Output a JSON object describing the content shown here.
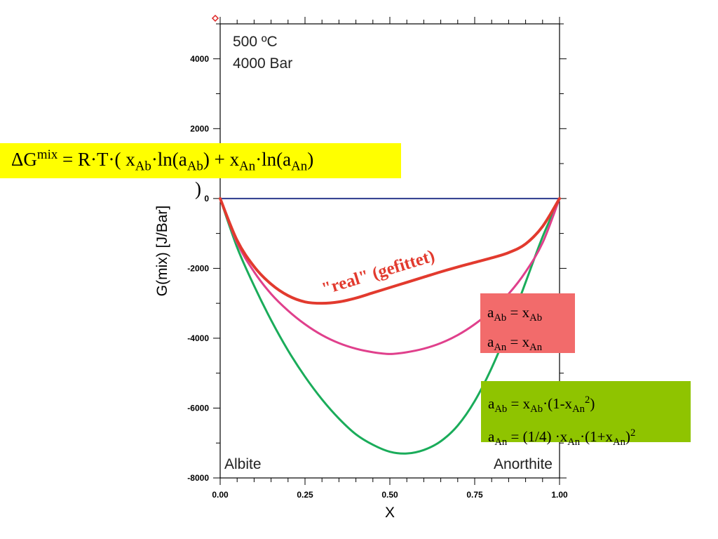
{
  "chart_data": {
    "type": "line",
    "title": "",
    "conditions": [
      "500 ºC",
      "4000 Bar"
    ],
    "xlabel": "X",
    "ylabel": "G(mix) [J/Bar]",
    "xlim": [
      0,
      1
    ],
    "ylim": [
      -8000,
      5000
    ],
    "x_ticks": [
      "0.00",
      "0.25",
      "0.50",
      "0.75",
      "1.00"
    ],
    "y_ticks": [
      "4000",
      "2000",
      "0",
      "-2000",
      "-4000",
      "-6000",
      "-8000"
    ],
    "corner_labels": {
      "left": "Albite",
      "right": "Anorthite"
    },
    "series": [
      {
        "color": "#2b3a8c",
        "x": [
          0,
          1
        ],
        "y": [
          0,
          0
        ]
      },
      {
        "label": "\"real\" (gefittet)",
        "color": "#e23a2e",
        "x": [
          0,
          0.05,
          0.1,
          0.15,
          0.2,
          0.25,
          0.3,
          0.35,
          0.4,
          0.45,
          0.5,
          0.55,
          0.6,
          0.65,
          0.7,
          0.75,
          0.8,
          0.85,
          0.9,
          0.95,
          1.0
        ],
        "y": [
          0,
          -1200,
          -1950,
          -2450,
          -2780,
          -2960,
          -3000,
          -2960,
          -2850,
          -2700,
          -2550,
          -2400,
          -2250,
          -2100,
          -1960,
          -1830,
          -1700,
          -1550,
          -1300,
          -800,
          0
        ]
      },
      {
        "color": "#e0408c",
        "x": [
          0,
          0.05,
          0.1,
          0.15,
          0.2,
          0.25,
          0.3,
          0.35,
          0.4,
          0.45,
          0.5,
          0.55,
          0.6,
          0.65,
          0.7,
          0.75,
          0.8,
          0.85,
          0.9,
          0.95,
          1.0
        ],
        "y": [
          0,
          -1270,
          -2100,
          -2730,
          -3210,
          -3600,
          -3910,
          -4140,
          -4300,
          -4400,
          -4450,
          -4400,
          -4300,
          -4140,
          -3910,
          -3600,
          -3210,
          -2730,
          -2100,
          -1270,
          0
        ]
      },
      {
        "color": "#1aac5a",
        "x": [
          0,
          0.05,
          0.1,
          0.15,
          0.2,
          0.25,
          0.3,
          0.35,
          0.4,
          0.45,
          0.5,
          0.55,
          0.6,
          0.65,
          0.7,
          0.75,
          0.8,
          0.85,
          0.9,
          0.95,
          1.0
        ],
        "y": [
          0,
          -1400,
          -2500,
          -3480,
          -4350,
          -5100,
          -5750,
          -6300,
          -6750,
          -7050,
          -7250,
          -7300,
          -7200,
          -6950,
          -6500,
          -5800,
          -4850,
          -3700,
          -2400,
          -1100,
          0
        ]
      }
    ],
    "grid": false
  },
  "formula": {
    "lhs": "ΔG",
    "mix": "mix",
    "eq": " = R·T·( x",
    "ab": "Ab",
    "ln1": "·ln(a",
    "ab2": "Ab",
    "plus": ") + x",
    "an": "An",
    "ln2": "·ln(a",
    "an2": "An",
    "close": ")",
    "tail": ")"
  },
  "ideal_box": {
    "a": "a",
    "ab": "Ab",
    "eq1": " = x",
    "ab_r": "Ab",
    "a2": "a",
    "an": "An",
    "eq2": " = x",
    "an_r": "An"
  },
  "model_box": {
    "a": "a",
    "ab": "Ab",
    "eq1": " = x",
    "ab_r": "Ab",
    "rest1": "·(1-x",
    "an_s": "An",
    "sq": "2",
    "close1": ")",
    "a2": "a",
    "an": "An",
    "eq2": " = (1/4) ·x",
    "an_r": "An",
    "rest2": "·(1+x",
    "an_s2": "An",
    "close2": ")",
    "sq2": "2"
  }
}
